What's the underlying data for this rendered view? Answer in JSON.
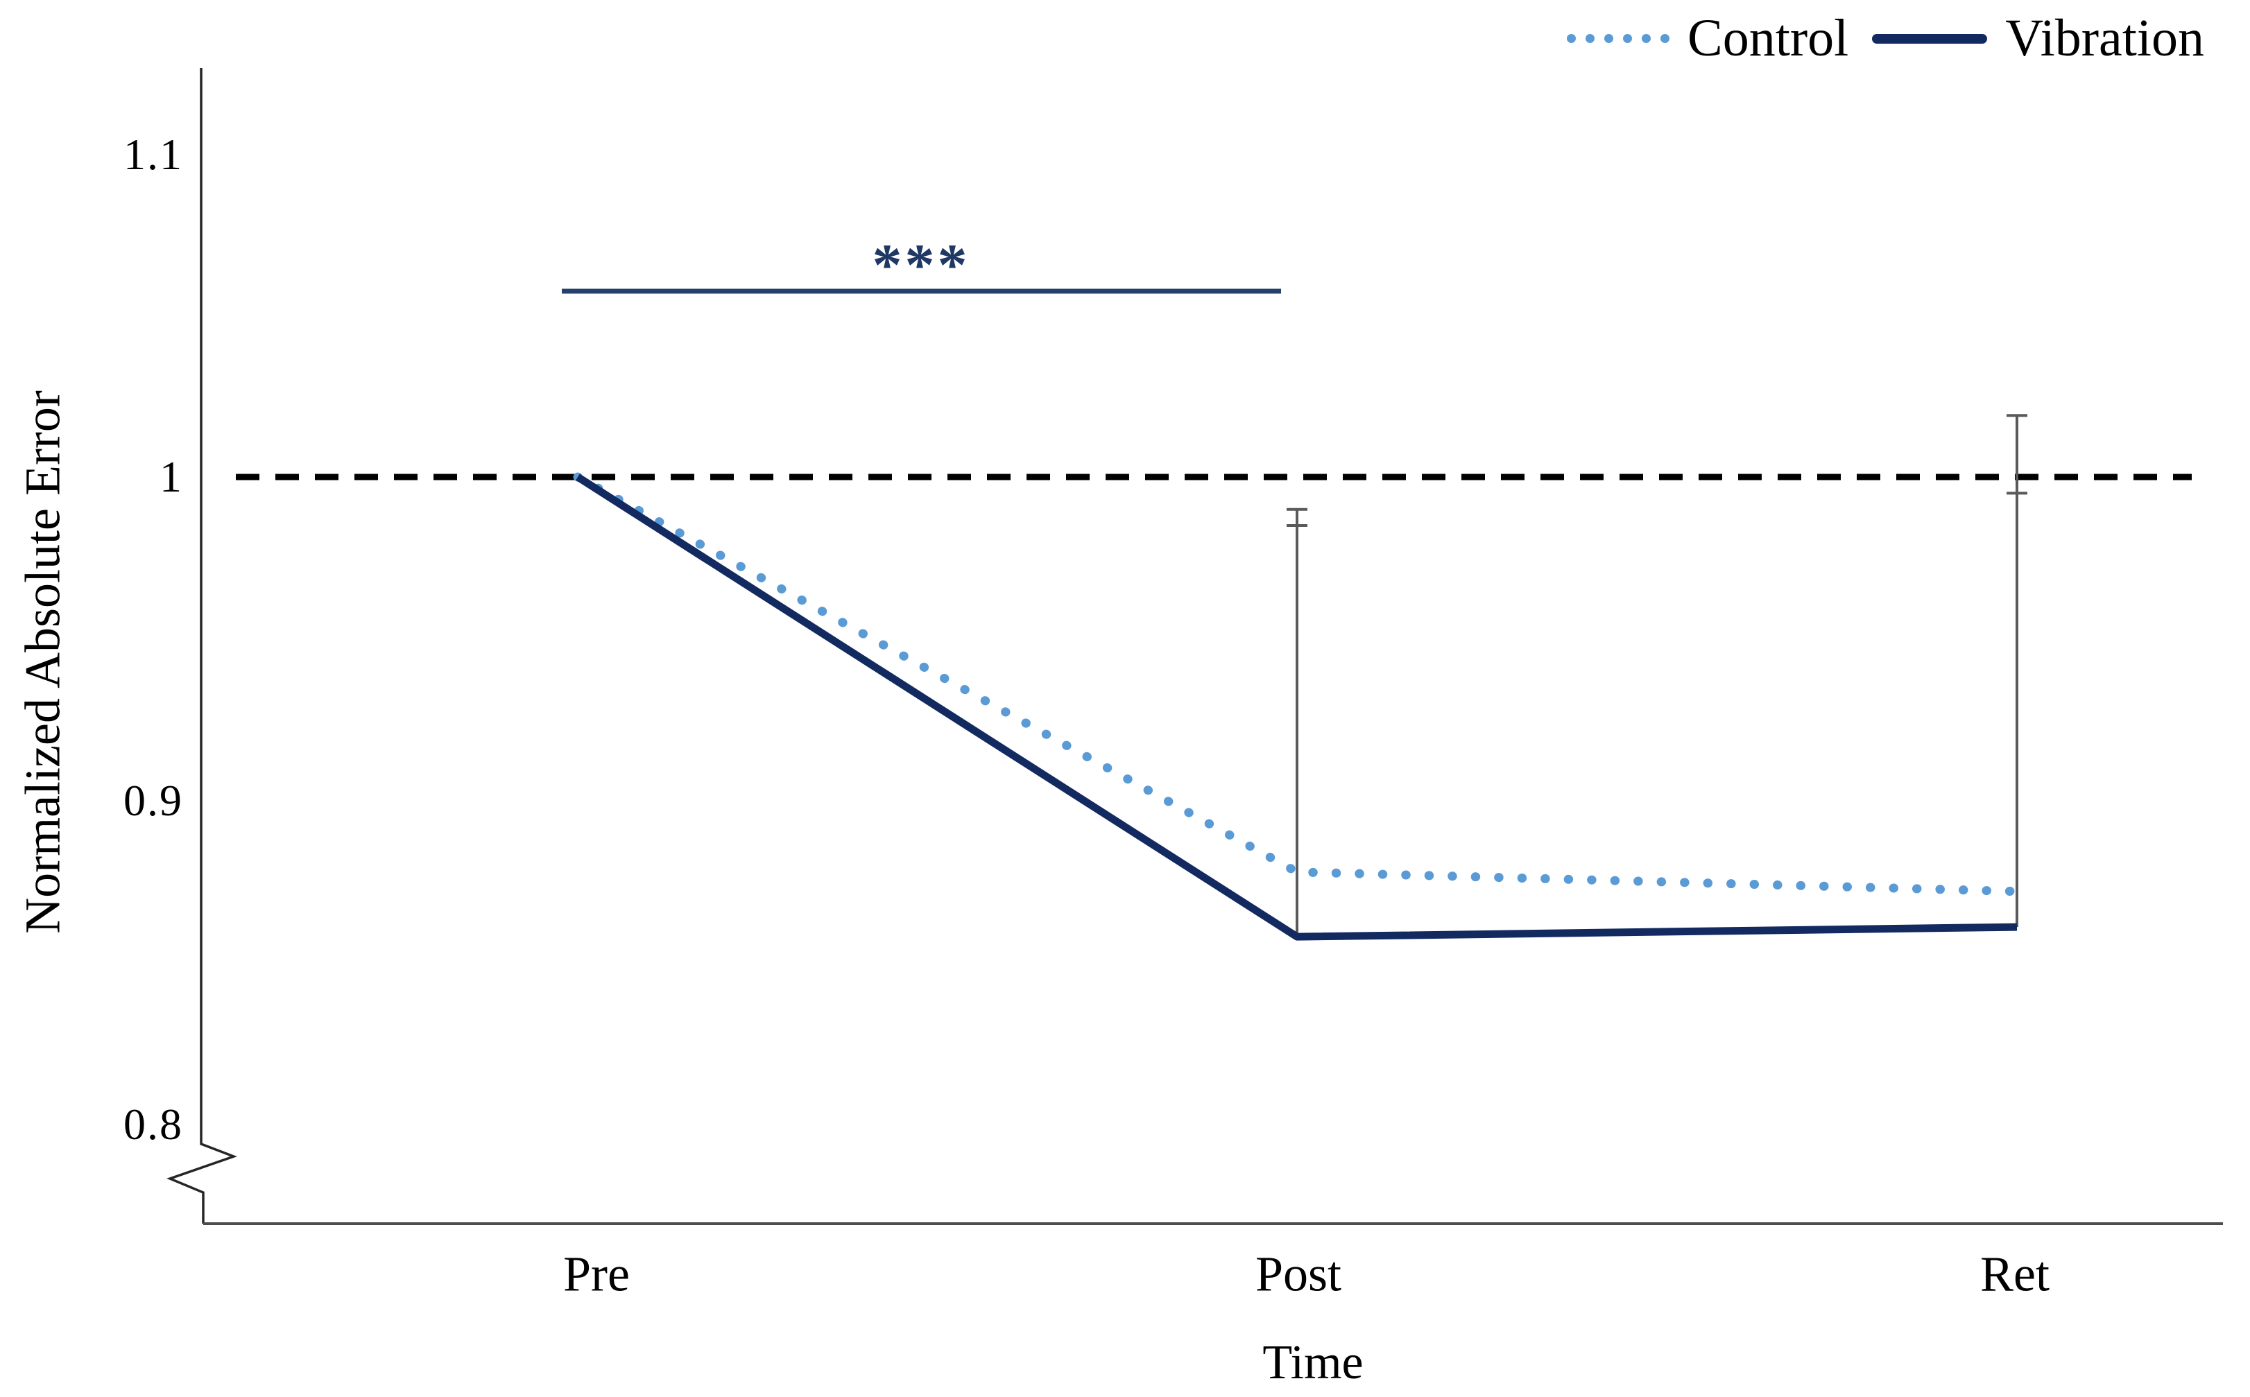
{
  "chart_data": {
    "type": "line",
    "title": "",
    "xlabel": "Time",
    "ylabel": "Normalized Absolute Error",
    "categories": [
      "Pre",
      "Post",
      "Ret"
    ],
    "series": [
      {
        "name": "Control",
        "style": "dotted",
        "color": "#5b9bd5",
        "values": [
          1.0,
          0.878,
          0.872
        ]
      },
      {
        "name": "Vibration",
        "style": "solid",
        "color": "#132a60",
        "values": [
          1.0,
          0.858,
          0.861
        ]
      }
    ],
    "reference_line": {
      "value": 1.0,
      "style": "dashed",
      "color": "#000000"
    },
    "error_bars": [
      {
        "category": "Post",
        "x_index": 1,
        "bottom": 0.858,
        "caps": [
          0.99,
          0.985
        ],
        "color": "#5a5a5a"
      },
      {
        "category": "Ret",
        "x_index": 2,
        "bottom": 0.861,
        "caps": [
          1.019,
          0.995
        ],
        "color": "#5a5a5a"
      }
    ],
    "significance": {
      "label": "***",
      "from": "Pre",
      "to": "Post",
      "color": "#1f3864"
    },
    "y_axis": {
      "ticks": [
        "1.1",
        "1",
        "0.9",
        "0.8"
      ],
      "range_shown": [
        0.8,
        1.1
      ],
      "axis_break": true
    },
    "grid": false,
    "legend_position": "top-right",
    "legend": [
      {
        "label": "Control"
      },
      {
        "label": "Vibration"
      }
    ]
  }
}
